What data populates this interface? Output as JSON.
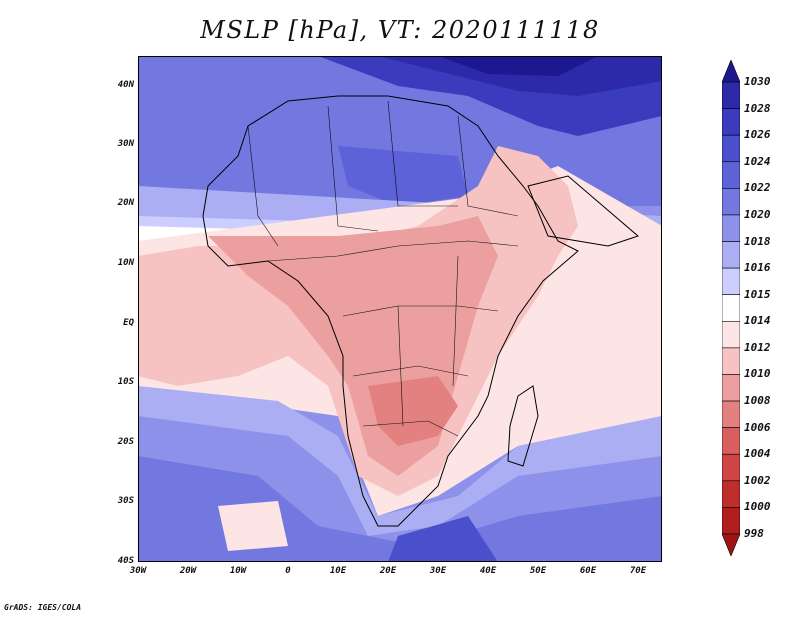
{
  "title": "MSLP [hPa], VT: 2020111118",
  "credit": "GrADS: IGES/COLA",
  "lat_labels": [
    "40N",
    "30N",
    "20N",
    "10N",
    "EQ",
    "10S",
    "20S",
    "30S",
    "40S"
  ],
  "lon_labels": [
    "30W",
    "20W",
    "10W",
    "0",
    "10E",
    "20E",
    "30E",
    "40E",
    "50E",
    "60E",
    "70E"
  ],
  "colorbar": {
    "levels": [
      "1030",
      "1028",
      "1026",
      "1024",
      "1022",
      "1020",
      "1018",
      "1016",
      "1015",
      "1014",
      "1012",
      "1010",
      "1008",
      "1006",
      "1004",
      "1002",
      "1000",
      "998"
    ],
    "colors": [
      "#1e1890",
      "#2c2aa8",
      "#3a3cbd",
      "#4a4fcc",
      "#5d62d8",
      "#7378e1",
      "#8d91e9",
      "#abaef2",
      "#ccceff",
      "#ffffff",
      "#fde5e5",
      "#f6c2c2",
      "#ec9f9f",
      "#e38080",
      "#d95f5f",
      "#cf4545",
      "#c02d2d",
      "#b01e1e",
      "#9e1414"
    ]
  },
  "map": {
    "region": "Africa and surrounding oceans",
    "lon_range": [
      -30,
      75
    ],
    "lat_range": [
      -40,
      45
    ]
  }
}
